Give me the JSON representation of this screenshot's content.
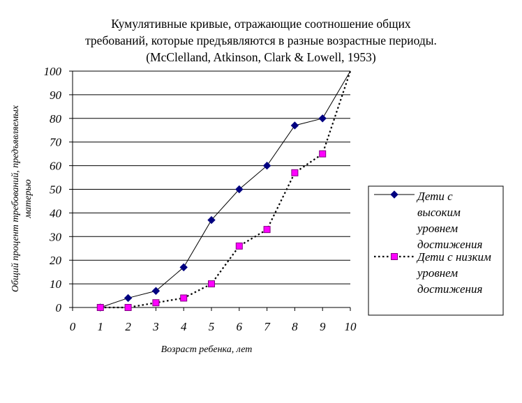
{
  "title": {
    "line1": "Кумулятивные кривые, отражающие соотношение общих",
    "line2": "требований, которые предъявляются в разные возрастные периоды.",
    "line3": "(McClelland, Atkinson, Clark & Lowell, 1953)"
  },
  "chart_data": {
    "type": "line",
    "title": "Кумулятивные кривые, отражающие соотношение общих требований, которые предъявляются в разные возрастные периоды. (McClelland, Atkinson, Clark & Lowell, 1953)",
    "xlabel": "Возраст ребенка, лет",
    "ylabel_line1": "Общий процент требований, предъявляемых",
    "ylabel_line2": "матерью",
    "xlim": [
      0,
      10
    ],
    "ylim": [
      0,
      100
    ],
    "x_ticks": [
      0,
      1,
      2,
      3,
      4,
      5,
      6,
      7,
      8,
      9,
      10
    ],
    "y_ticks": [
      0,
      10,
      20,
      30,
      40,
      50,
      60,
      70,
      80,
      90,
      100
    ],
    "grid": "horizontal",
    "legend_position": "right",
    "series": [
      {
        "name_lines": [
          "Дети с",
          "высоким",
          "уровнем",
          "достижения"
        ],
        "line_style": "solid",
        "marker": "diamond",
        "marker_color": "#000080",
        "points": [
          [
            1,
            0
          ],
          [
            2,
            4
          ],
          [
            3,
            7
          ],
          [
            4,
            17
          ],
          [
            5,
            37
          ],
          [
            6,
            50
          ],
          [
            7,
            60
          ],
          [
            8,
            77
          ],
          [
            9,
            80
          ],
          [
            10,
            100
          ]
        ],
        "marked_x": [
          1,
          2,
          3,
          4,
          5,
          6,
          7,
          8,
          9
        ]
      },
      {
        "name_lines": [
          "Дети с низким",
          "уровнем",
          "достижения"
        ],
        "line_style": "dotted",
        "marker": "square",
        "marker_color": "#ff00ff",
        "points": [
          [
            1,
            0
          ],
          [
            2,
            0
          ],
          [
            3,
            2
          ],
          [
            4,
            4
          ],
          [
            5,
            10
          ],
          [
            6,
            26
          ],
          [
            7,
            33
          ],
          [
            8,
            57
          ],
          [
            9,
            65
          ],
          [
            10,
            100
          ]
        ],
        "marked_x": [
          1,
          2,
          3,
          4,
          5,
          6,
          7,
          8,
          9
        ]
      }
    ]
  }
}
